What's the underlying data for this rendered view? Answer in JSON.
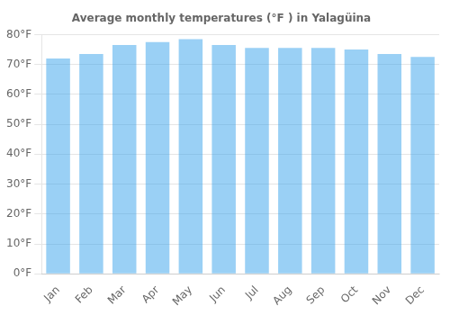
{
  "chart_data": {
    "type": "bar",
    "title": "Average monthly temperatures (°F ) in Yalagüina",
    "categories": [
      "Jan",
      "Feb",
      "Mar",
      "Apr",
      "May",
      "Jun",
      "Jul",
      "Aug",
      "Sep",
      "Oct",
      "Nov",
      "Dec"
    ],
    "values": [
      72.0,
      73.5,
      76.5,
      77.5,
      78.5,
      76.5,
      75.5,
      75.5,
      75.5,
      75.0,
      73.5,
      72.5
    ],
    "ylim": [
      0,
      80
    ],
    "yticks": [
      {
        "value": 0,
        "label": "0°F"
      },
      {
        "value": 10,
        "label": "10°F"
      },
      {
        "value": 20,
        "label": "20°F"
      },
      {
        "value": 30,
        "label": "30°F"
      },
      {
        "value": 40,
        "label": "40°F"
      },
      {
        "value": 50,
        "label": "50°F"
      },
      {
        "value": 60,
        "label": "60°F"
      },
      {
        "value": 70,
        "label": "70°F"
      },
      {
        "value": 80,
        "label": "80°F"
      }
    ],
    "grid": true
  }
}
